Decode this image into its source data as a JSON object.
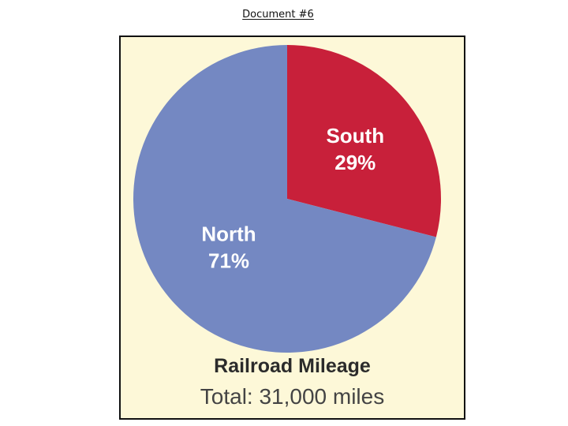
{
  "document": {
    "title": "Document #6"
  },
  "chart_data": {
    "type": "pie",
    "title": "Railroad Mileage",
    "subtitle": "Total: 31,000 miles",
    "categories": [
      "South",
      "North"
    ],
    "values": [
      29,
      71
    ],
    "value_labels": [
      "29%",
      "71%"
    ],
    "colors": [
      "#c8203a",
      "#7488c2"
    ]
  }
}
